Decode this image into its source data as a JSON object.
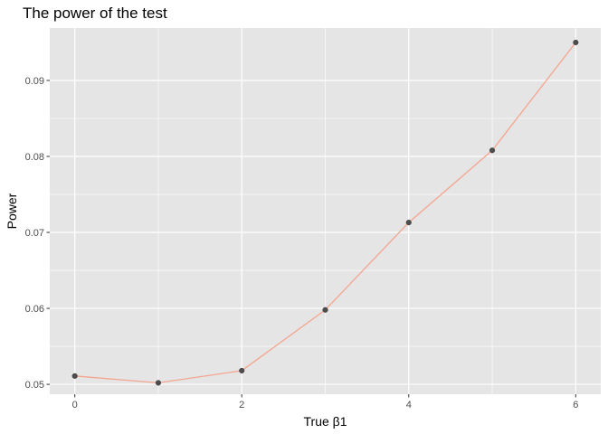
{
  "chart_data": {
    "type": "line",
    "title": "The power of the test",
    "xlabel": "True β1",
    "ylabel": "Power",
    "x": [
      0,
      1,
      2,
      3,
      4,
      5,
      6
    ],
    "y": [
      0.0511,
      0.0502,
      0.0518,
      0.0598,
      0.0713,
      0.0808,
      0.095
    ],
    "xlim": [
      -0.3,
      6.3
    ],
    "ylim": [
      0.0487,
      0.0969
    ],
    "xticks": [
      0,
      2,
      4,
      6
    ],
    "xtick_labels": [
      "0",
      "2",
      "4",
      "6"
    ],
    "yticks": [
      0.05,
      0.06,
      0.07,
      0.08,
      0.09
    ],
    "ytick_labels": [
      "0.05",
      "0.06",
      "0.07",
      "0.08",
      "0.09"
    ],
    "grid": true,
    "colors": {
      "panel_background": "#e5e5e5",
      "grid": "#ffffff",
      "line": "#f4a58f",
      "point": "#4d4d4d",
      "tick": "#333333"
    }
  }
}
